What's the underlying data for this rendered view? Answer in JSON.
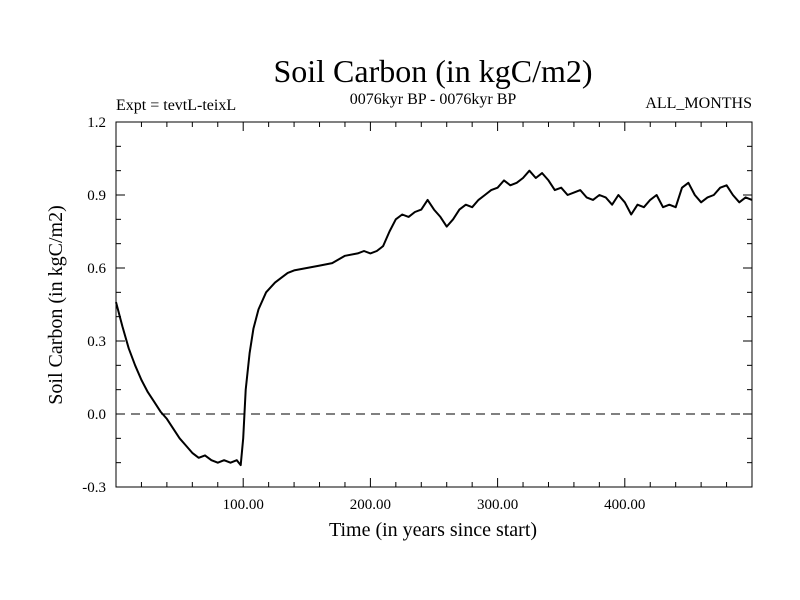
{
  "chart_data": {
    "type": "line",
    "title": "Soil Carbon (in kgC/m2)",
    "subtitle_left": "Expt = tevtL-teixL",
    "subtitle_center": "0076kyr BP - 0076kyr BP",
    "subtitle_right": "ALL_MONTHS",
    "xlabel": "Time (in years since start)",
    "ylabel": "Soil Carbon (in kgC/m2)",
    "xlim": [
      0,
      500
    ],
    "ylim": [
      -0.3,
      1.2
    ],
    "x_ticks": [
      100,
      200,
      300,
      400
    ],
    "x_tick_labels": [
      "100.00",
      "200.00",
      "300.00",
      "400.00"
    ],
    "y_ticks": [
      -0.3,
      0.0,
      0.3,
      0.6,
      0.9,
      1.2
    ],
    "y_tick_labels": [
      "-0.3",
      "0.0",
      "0.3",
      "0.6",
      "0.9",
      "1.2"
    ],
    "reference_line": {
      "y": 0.0,
      "style": "dashed"
    },
    "grid": false,
    "series": [
      {
        "x": [
          0,
          5,
          10,
          15,
          20,
          25,
          30,
          35,
          40,
          45,
          50,
          55,
          60,
          65,
          70,
          75,
          80,
          85,
          90,
          95,
          98,
          100,
          102,
          105,
          108,
          112,
          118,
          125,
          130,
          135,
          140,
          150,
          160,
          170,
          180,
          190,
          195,
          200,
          205,
          210,
          215,
          220,
          225,
          230,
          235,
          240,
          245,
          250,
          255,
          260,
          265,
          270,
          275,
          280,
          285,
          290,
          295,
          300,
          305,
          310,
          315,
          320,
          325,
          330,
          335,
          340,
          345,
          350,
          355,
          360,
          365,
          370,
          375,
          380,
          385,
          390,
          395,
          400,
          405,
          410,
          415,
          420,
          425,
          430,
          435,
          440,
          445,
          450,
          455,
          460,
          465,
          470,
          475,
          480,
          485,
          490,
          495,
          500
        ],
        "values": [
          0.46,
          0.36,
          0.27,
          0.2,
          0.14,
          0.09,
          0.05,
          0.01,
          -0.02,
          -0.06,
          -0.1,
          -0.13,
          -0.16,
          -0.18,
          -0.17,
          -0.19,
          -0.2,
          -0.19,
          -0.2,
          -0.19,
          -0.21,
          -0.1,
          0.1,
          0.25,
          0.35,
          0.43,
          0.5,
          0.54,
          0.56,
          0.58,
          0.59,
          0.6,
          0.61,
          0.62,
          0.65,
          0.66,
          0.67,
          0.66,
          0.67,
          0.69,
          0.75,
          0.8,
          0.82,
          0.81,
          0.83,
          0.84,
          0.88,
          0.84,
          0.81,
          0.77,
          0.8,
          0.84,
          0.86,
          0.85,
          0.88,
          0.9,
          0.92,
          0.93,
          0.96,
          0.94,
          0.95,
          0.97,
          1.0,
          0.97,
          0.99,
          0.96,
          0.92,
          0.93,
          0.9,
          0.91,
          0.92,
          0.89,
          0.88,
          0.9,
          0.89,
          0.86,
          0.9,
          0.87,
          0.82,
          0.86,
          0.85,
          0.88,
          0.9,
          0.85,
          0.86,
          0.85,
          0.93,
          0.95,
          0.9,
          0.87,
          0.89,
          0.9,
          0.93,
          0.94,
          0.9,
          0.87,
          0.89,
          0.88
        ]
      }
    ]
  }
}
